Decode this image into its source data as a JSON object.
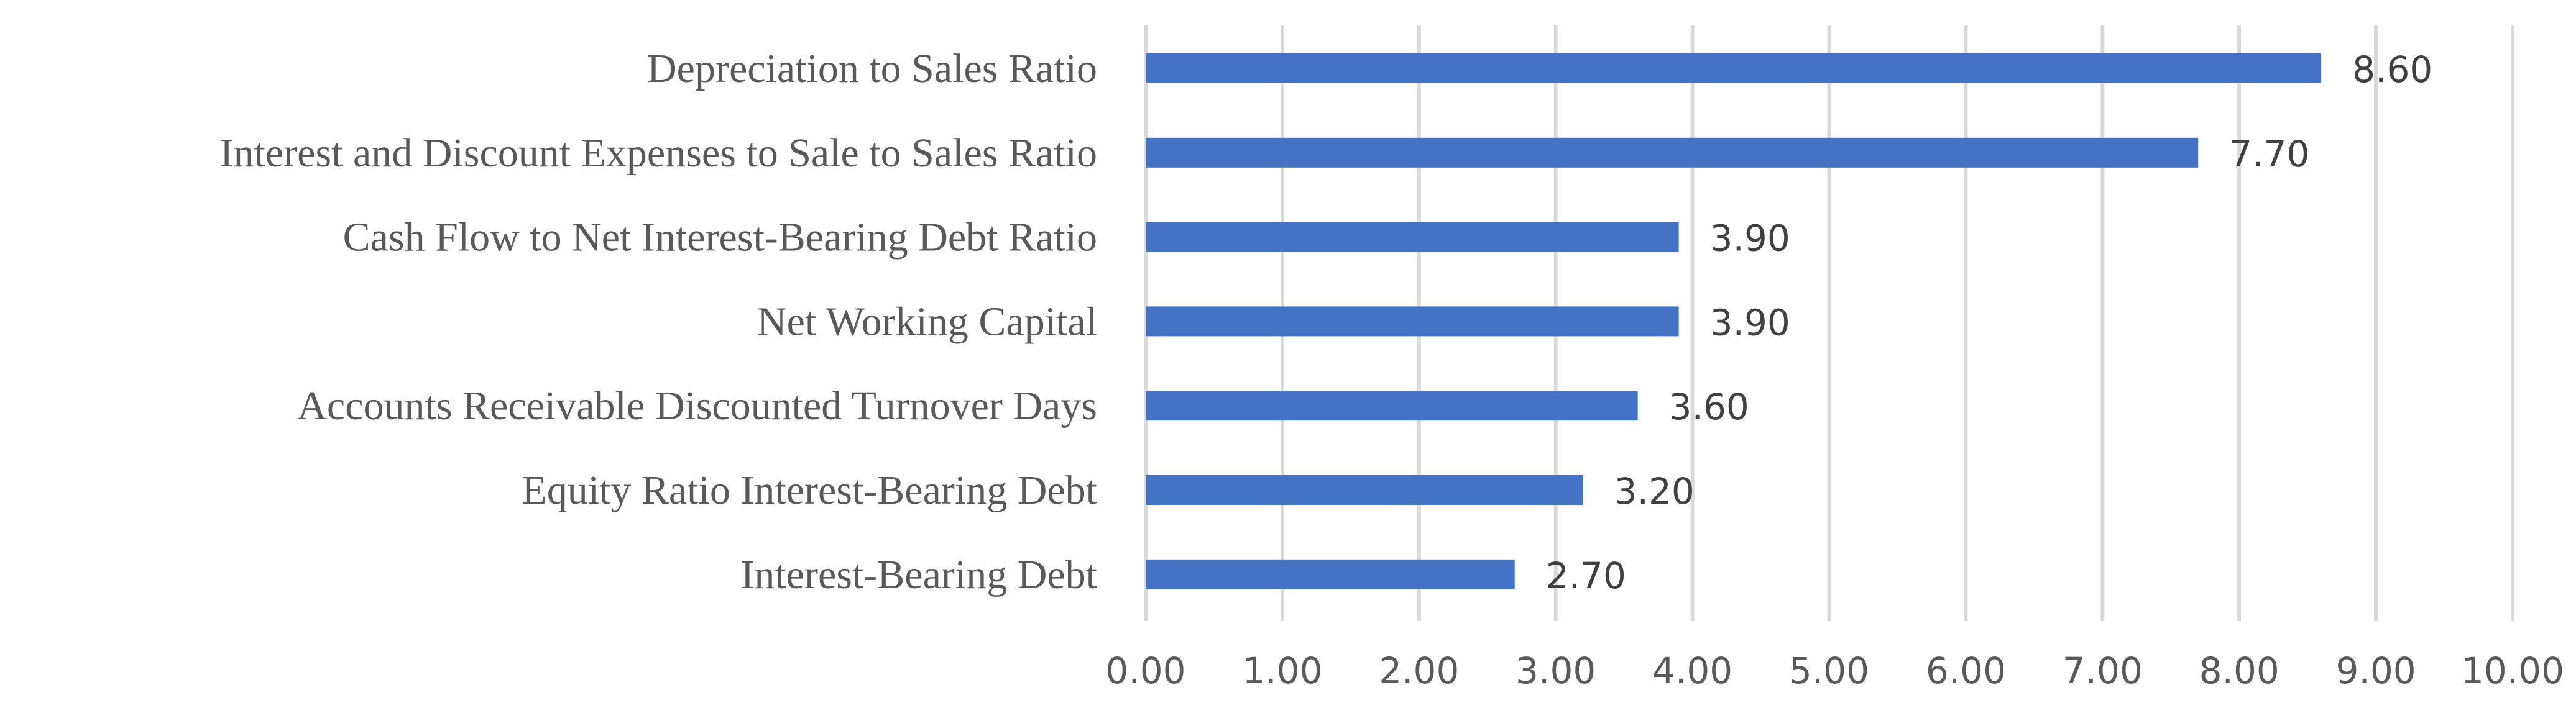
{
  "chart_data": {
    "type": "bar",
    "orientation": "horizontal",
    "title": "",
    "xlabel": "",
    "ylabel": "",
    "categories": [
      "Depreciation to Sales Ratio",
      "Interest and Discount Expenses to Sale to Sales Ratio",
      "Cash Flow to Net Interest-Bearing Debt Ratio",
      "Net Working Capital",
      "Accounts Receivable Discounted Turnover Days",
      "Equity Ratio Interest-Bearing Debt",
      "Interest-Bearing Debt"
    ],
    "values": [
      8.6,
      7.7,
      3.9,
      3.9,
      3.6,
      3.2,
      2.7
    ],
    "data_labels": [
      "8.60",
      "7.70",
      "3.90",
      "3.90",
      "3.60",
      "3.20",
      "2.70"
    ],
    "xlim": [
      0,
      10
    ],
    "xticks": [
      0,
      1,
      2,
      3,
      4,
      5,
      6,
      7,
      8,
      9,
      10
    ],
    "xtick_labels": [
      "0.00",
      "1.00",
      "2.00",
      "3.00",
      "4.00",
      "5.00",
      "6.00",
      "7.00",
      "8.00",
      "9.00",
      "10.00"
    ],
    "grid": true,
    "legend": "none",
    "bar_color": "#4472C4",
    "grid_color": "#D9D9D9",
    "category_label_color": "#595959",
    "value_label_color": "#404040"
  }
}
